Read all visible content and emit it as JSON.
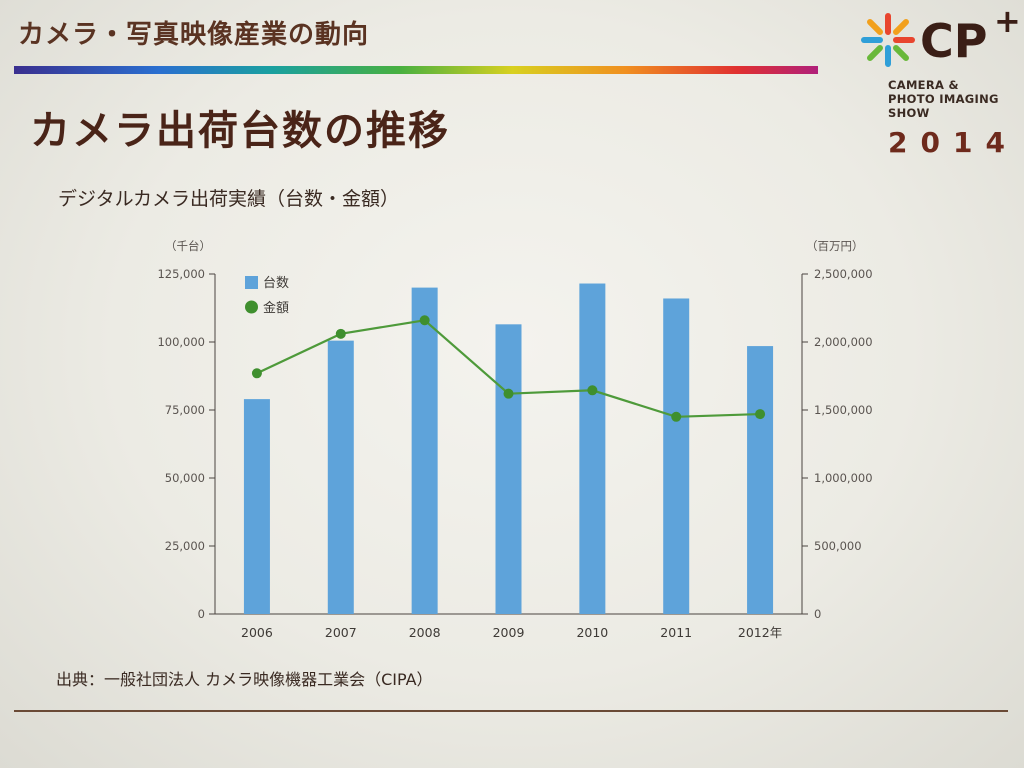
{
  "header": {
    "section_title": "カメラ・写真映像産業の動向",
    "page_title": "カメラ出荷台数の推移",
    "chart_heading": "デジタルカメラ出荷実績（台数・金額）"
  },
  "logo": {
    "mark": "CP",
    "plus": "+",
    "line1": "CAMERA &",
    "line2": "PHOTO IMAGING",
    "line3": "SHOW",
    "year": "2014",
    "star_colors": [
      "#e8452e",
      "#f2a01c",
      "#2f9fd8",
      "#69b83a"
    ]
  },
  "footer": {
    "source": "出典：一般社団法人 カメラ映像機器工業会（CIPA）"
  },
  "colors": {
    "bar": "#5ea3da",
    "line": "#4e9a3a",
    "marker": "#3f8f2e",
    "axis": "#4a4440"
  },
  "chart_data": {
    "type": "bar",
    "categories": [
      "2006",
      "2007",
      "2008",
      "2009",
      "2010",
      "2011",
      "2012年"
    ],
    "series": [
      {
        "name": "台数",
        "type": "bar",
        "axis": "left",
        "values": [
          79000,
          100500,
          120000,
          106500,
          121500,
          116000,
          98500
        ]
      },
      {
        "name": "金額",
        "type": "line",
        "axis": "right",
        "values": [
          1770000,
          2060000,
          2160000,
          1620000,
          1645000,
          1450000,
          1470000
        ]
      }
    ],
    "y_left": {
      "unit": "（千台）",
      "ylim": [
        0,
        125000
      ],
      "ticks": [
        "0",
        "25,000",
        "50,000",
        "75,000",
        "100,000",
        "125,000"
      ]
    },
    "y_right": {
      "unit": "（百万円）",
      "ylim": [
        0,
        2500000
      ],
      "ticks": [
        "0",
        "500,000",
        "1,000,000",
        "1,500,000",
        "2,000,000",
        "2,500,000"
      ]
    },
    "legend_position": "top-left",
    "grid": false
  }
}
